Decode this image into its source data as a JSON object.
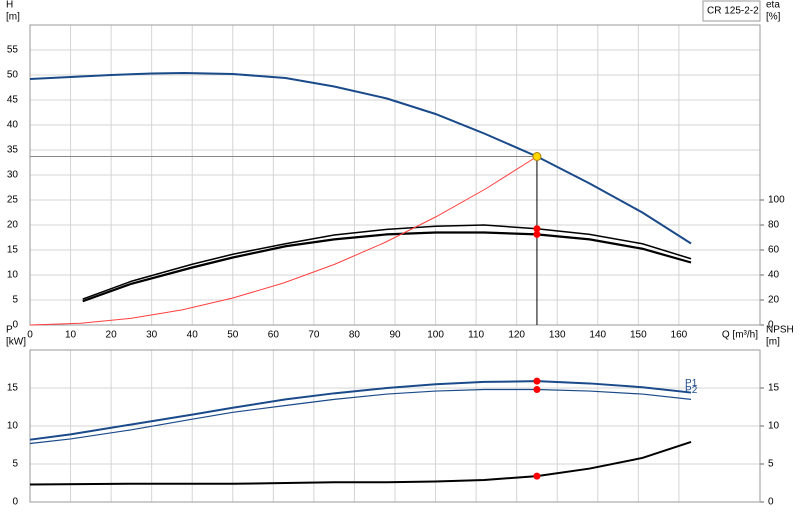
{
  "chart_data": [
    {
      "type": "line",
      "title": "CR 125-2-2",
      "xlabel": "Q [m³/h]",
      "ylabel": [
        "H",
        "[m]"
      ],
      "y2label": [
        "eta",
        "[%]"
      ],
      "xlim": [
        0,
        180
      ],
      "xticks": [
        0,
        10,
        20,
        30,
        40,
        50,
        60,
        70,
        80,
        90,
        100,
        110,
        120,
        130,
        140,
        150,
        160
      ],
      "ylim": [
        0,
        60
      ],
      "yticks": [
        0,
        5,
        10,
        15,
        20,
        25,
        30,
        35,
        40,
        45,
        50,
        55
      ],
      "y2lim": [
        0,
        240
      ],
      "y2ticks": [
        0,
        20,
        40,
        60,
        80,
        100
      ],
      "grid": true,
      "operating_point": {
        "x": 125,
        "y": 33.7,
        "color": "#ffd700"
      },
      "series": [
        {
          "color": "#1a4a8a",
          "width": 2,
          "x": [
            0,
            10,
            20,
            30,
            38,
            50,
            63,
            75,
            88,
            100,
            112,
            125,
            138,
            151,
            163
          ],
          "values": [
            49.2,
            49.6,
            50,
            50.3,
            50.4,
            50.2,
            49.4,
            47.7,
            45.3,
            42.2,
            38.3,
            33.7,
            28.3,
            22.5,
            16.3
          ]
        },
        {
          "color": "#000000",
          "width": 1.5,
          "axis": "y2",
          "point_color": "#ff0000",
          "x": [
            13,
            25,
            40,
            50,
            63,
            75,
            88,
            100,
            112,
            125,
            138,
            151,
            163
          ],
          "values": [
            20.7,
            35,
            48.6,
            56.6,
            65,
            72,
            76.5,
            79,
            80,
            77,
            72.5,
            65,
            53
          ]
        },
        {
          "color": "#000000",
          "width": 2.2,
          "axis": "y2",
          "point_color": "#ff0000",
          "x": [
            13,
            25,
            40,
            50,
            63,
            75,
            88,
            100,
            112,
            125,
            138,
            151,
            163
          ],
          "values": [
            19,
            33,
            46,
            54,
            63,
            68.5,
            72.5,
            74,
            74,
            72.5,
            68.5,
            61,
            50
          ]
        },
        {
          "color": "#ff4040",
          "width": 1,
          "x": [
            0,
            12.5,
            25,
            37.5,
            50,
            62.5,
            75,
            87.5,
            100,
            112.5,
            125
          ],
          "values": [
            0,
            0.34,
            1.35,
            3.03,
            5.4,
            8.4,
            12.1,
            16.5,
            21.6,
            27.3,
            33.7
          ]
        }
      ]
    },
    {
      "type": "line",
      "ylabel": [
        "P",
        "[kW]"
      ],
      "y2label": [
        "NPSH",
        "[m]"
      ],
      "xlim": [
        0,
        180
      ],
      "xticks": [
        0,
        10,
        20,
        30,
        40,
        50,
        60,
        70,
        80,
        90,
        100,
        110,
        120,
        130,
        140,
        150,
        160
      ],
      "ylim": [
        0,
        20
      ],
      "yticks": [
        0,
        5,
        10,
        15
      ],
      "y2lim": [
        0,
        20
      ],
      "y2ticks": [
        0,
        5,
        10,
        15
      ],
      "grid": true,
      "series": [
        {
          "name": "P1",
          "color": "#1a4a8a",
          "width": 2,
          "point_color": "#ff0000",
          "x": [
            0,
            10,
            25,
            40,
            50,
            63,
            75,
            88,
            100,
            112,
            125,
            138,
            151,
            163
          ],
          "values": [
            8.2,
            8.9,
            10.2,
            11.5,
            12.4,
            13.5,
            14.3,
            15,
            15.5,
            15.8,
            15.9,
            15.6,
            15.1,
            14.4
          ]
        },
        {
          "name": "P2",
          "color": "#1a4a8a",
          "width": 1.2,
          "point_color": "#ff0000",
          "x": [
            0,
            10,
            25,
            40,
            50,
            63,
            75,
            88,
            100,
            112,
            125,
            138,
            151,
            163
          ],
          "values": [
            7.7,
            8.3,
            9.5,
            10.9,
            11.8,
            12.7,
            13.5,
            14.2,
            14.6,
            14.8,
            14.8,
            14.6,
            14.2,
            13.5
          ]
        },
        {
          "color": "#000000",
          "width": 2,
          "axis": "y2",
          "point_color": "#ff0000",
          "x": [
            0,
            25,
            50,
            63,
            75,
            88,
            100,
            112,
            125,
            138,
            151,
            163
          ],
          "values": [
            2.3,
            2.4,
            2.4,
            2.5,
            2.6,
            2.6,
            2.7,
            2.9,
            3.4,
            4.4,
            5.8,
            7.9
          ]
        }
      ]
    }
  ]
}
